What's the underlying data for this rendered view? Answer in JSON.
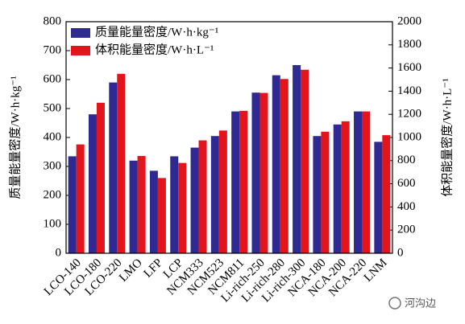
{
  "chart_data": {
    "type": "bar",
    "y_label": "质量能量密度/W·h·kg⁻¹",
    "y2_label": "体积能量密度/W·h·L⁻¹",
    "categories": [
      "LCO-140",
      "LCO-180",
      "LCO-220",
      "LMO",
      "LFP",
      "LCP",
      "NCM333",
      "NCM523",
      "NCM811",
      "Li-rich-250",
      "Li-rich-280",
      "Li-rich-300",
      "NCA-180",
      "NCA-200",
      "NCA-220",
      "LNM"
    ],
    "series": [
      {
        "name": "质量能量密度/W·h·kg⁻¹",
        "color": "#2f2a92",
        "axis": "y",
        "values": [
          335,
          480,
          590,
          320,
          285,
          335,
          365,
          405,
          490,
          555,
          615,
          650,
          405,
          445,
          490,
          385
        ]
      },
      {
        "name": "体积能量密度/W·h·L⁻¹",
        "color": "#e3141c",
        "axis": "y2",
        "values": [
          940,
          1300,
          1550,
          840,
          650,
          780,
          975,
          1060,
          1230,
          1385,
          1505,
          1585,
          1050,
          1140,
          1225,
          1020
        ]
      }
    ],
    "ylim": [
      0,
      800
    ],
    "yticks": [
      0,
      100,
      200,
      300,
      400,
      500,
      600,
      700,
      800
    ],
    "y2lim": [
      0,
      2000
    ],
    "y2ticks": [
      0,
      200,
      400,
      600,
      800,
      1000,
      1200,
      1400,
      1600,
      1800,
      2000
    ],
    "legend": "upper left",
    "watermark": "河沟边"
  }
}
